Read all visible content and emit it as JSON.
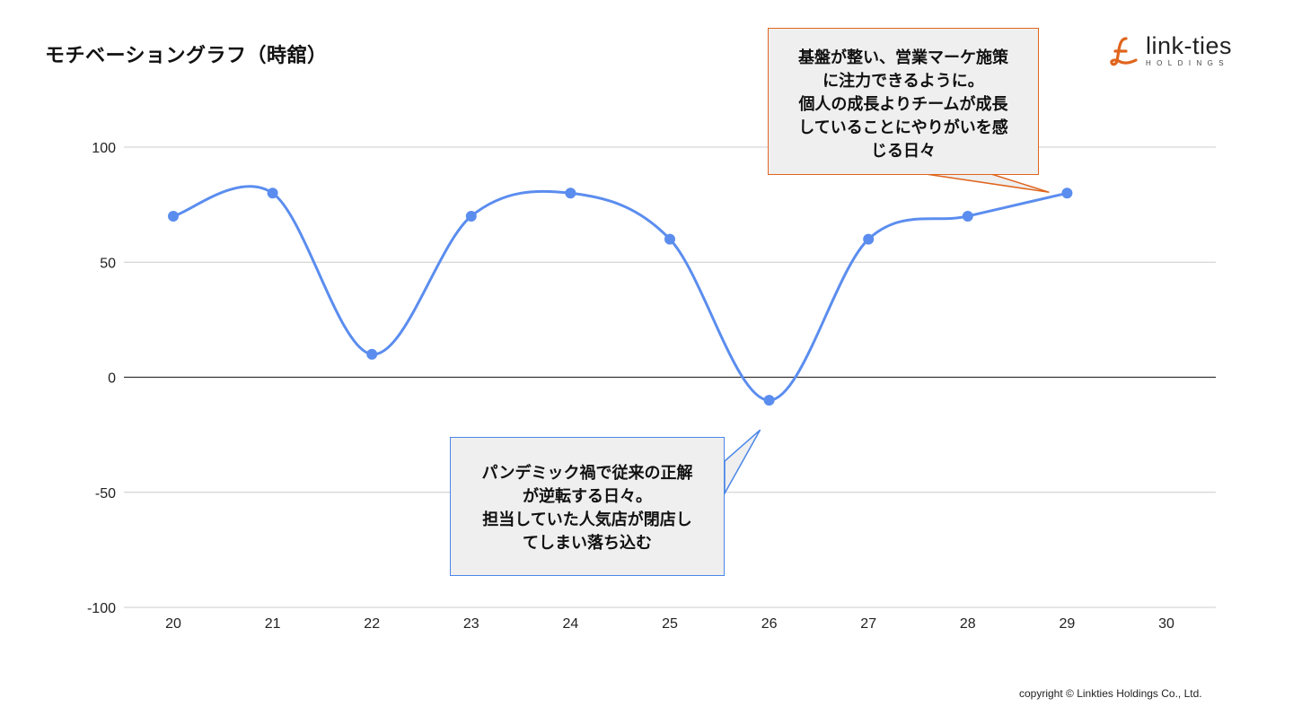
{
  "page": {
    "title": "モチベーショングラフ（時舘）",
    "copyright": "copyright © Linkties Holdings Co., Ltd."
  },
  "logo": {
    "text": "link-ties",
    "subtext": "HOLDINGS",
    "color": "#e0651d",
    "icon": "link-ties-logo-mark-icon"
  },
  "chart_data": {
    "type": "line",
    "title": "",
    "xlabel": "",
    "ylabel": "",
    "x": [
      20,
      21,
      22,
      23,
      24,
      25,
      26,
      27,
      28,
      29
    ],
    "x_ticks": [
      "20",
      "21",
      "22",
      "23",
      "24",
      "25",
      "26",
      "27",
      "28",
      "29",
      "30"
    ],
    "xlim": [
      20,
      30
    ],
    "ylim": [
      -100,
      100
    ],
    "y_ticks": [
      100,
      50,
      0,
      -50,
      -100
    ],
    "grid": true,
    "smooth": true,
    "line_color": "#5b8def",
    "series": [
      {
        "values": [
          70,
          80,
          10,
          70,
          80,
          60,
          -10,
          60,
          70,
          80
        ]
      }
    ]
  },
  "annotations": {
    "top": {
      "text": "基盤が整い、営業マーケ施策\nに注力できるように。\n個人の成長よりチームが成長\nしていることにやりがいを感\nじる日々",
      "border_color": "#e0651d",
      "points_to": {
        "x": 29,
        "y": 80
      }
    },
    "bottom": {
      "text": "パンデミック禍で従来の正解\nが逆転する日々。\n担当していた人気店が閉店し\nてしまい落ち込む",
      "border_color": "#4a86e8",
      "points_to": {
        "x": 26,
        "y": -10
      }
    }
  }
}
